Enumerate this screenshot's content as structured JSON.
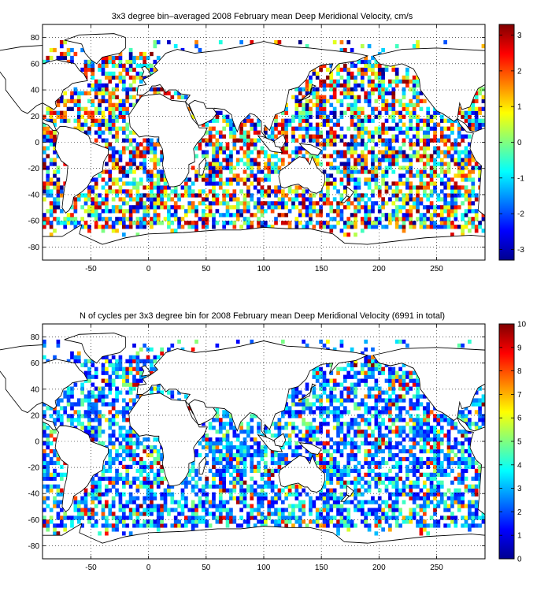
{
  "figure_title": "",
  "chart_data": [
    {
      "type": "heatmap",
      "title": "3x3 degree bin–averaged 2008 February mean Deep Meridional Velocity, cm/s",
      "xlabel": "",
      "ylabel": "",
      "xlim": [
        -92,
        292
      ],
      "ylim": [
        -90,
        90
      ],
      "x_ticks": [
        -50,
        0,
        50,
        100,
        150,
        200,
        250
      ],
      "y_ticks": [
        -80,
        -60,
        -40,
        -20,
        0,
        20,
        40,
        60,
        80
      ],
      "grid": "dotted",
      "bin_size_deg": 3,
      "colormap": "jet",
      "color_range": [
        -3.3,
        3.3
      ],
      "colorbar_ticks": [
        -3,
        -2,
        -1,
        0,
        1,
        2,
        3
      ],
      "colorbar_placement": "right",
      "value_kind": "velocity",
      "total_label": ""
    },
    {
      "type": "heatmap",
      "title": "N of cycles per 3x3 degree bin for 2008 February mean Deep Meridional Velocity (6991 in total)",
      "xlabel": "",
      "ylabel": "",
      "xlim": [
        -92,
        292
      ],
      "ylim": [
        -90,
        90
      ],
      "x_ticks": [
        -50,
        0,
        50,
        100,
        150,
        200,
        250
      ],
      "y_ticks": [
        -80,
        -60,
        -40,
        -20,
        0,
        20,
        40,
        60,
        80
      ],
      "grid": "dotted",
      "bin_size_deg": 3,
      "colormap": "jet",
      "color_range": [
        0,
        10
      ],
      "colorbar_ticks": [
        0,
        1,
        2,
        3,
        4,
        5,
        6,
        7,
        8,
        9,
        10
      ],
      "colorbar_placement": "right",
      "value_kind": "count",
      "total_label": "6991"
    }
  ],
  "colors": {
    "land": "#ffffff",
    "coast": "#000000",
    "grid": "#000000"
  }
}
